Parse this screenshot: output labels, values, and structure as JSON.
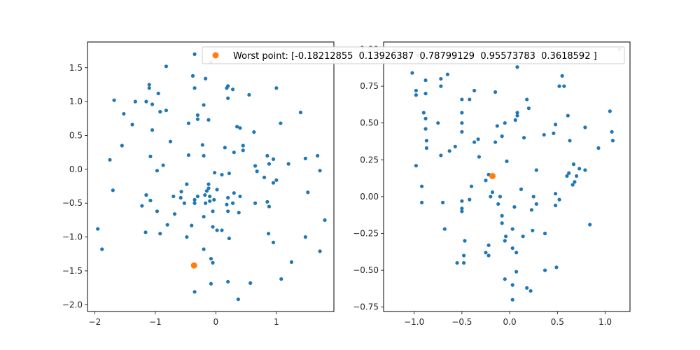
{
  "colors": {
    "series_points": "#1f77b4",
    "worst_point": "#ff7f0e",
    "axes": "#000000",
    "background": "#ffffff"
  },
  "legend": {
    "label": "Worst point: [-0.18212855  0.13926387  0.78799129  0.95573783  0.3618592 ]",
    "placement": "top-right of left plot, overlapping right plot"
  },
  "chart_data": [
    {
      "type": "scatter",
      "title": "",
      "xlabel": "",
      "ylabel": "",
      "grid": false,
      "xlim": [
        -2.12,
        1.95
      ],
      "ylim": [
        -2.1,
        1.88
      ],
      "xticks": [
        -2,
        -1,
        0,
        1
      ],
      "xtick_labels": [
        "−2",
        "−1",
        "0",
        "1"
      ],
      "yticks": [
        -2.0,
        -1.5,
        -1.0,
        -0.5,
        0.0,
        0.5,
        1.0,
        1.5
      ],
      "ytick_labels": [
        "−2.0",
        "−1.5",
        "−1.0",
        "−0.5",
        "0.0",
        "0.5",
        "1.0",
        "1.5"
      ],
      "series": [
        {
          "points": [
            [
              -0.35,
              1.7
            ],
            [
              -0.08,
              1.58
            ],
            [
              -0.82,
              1.52
            ],
            [
              -0.38,
              1.38
            ],
            [
              -0.17,
              1.34
            ],
            [
              -1.1,
              1.25
            ],
            [
              -0.35,
              1.2
            ],
            [
              0.18,
              1.2
            ],
            [
              0.2,
              1.23
            ],
            [
              0.28,
              1.18
            ],
            [
              -1.1,
              1.2
            ],
            [
              -0.95,
              1.12
            ],
            [
              0.55,
              1.1
            ],
            [
              1.0,
              1.2
            ],
            [
              -1.68,
              1.02
            ],
            [
              -1.33,
              1.0
            ],
            [
              -1.15,
              1.0
            ],
            [
              -1.05,
              0.96
            ],
            [
              -0.2,
              0.95
            ],
            [
              0.2,
              1.05
            ],
            [
              -0.82,
              0.87
            ],
            [
              -0.92,
              0.85
            ],
            [
              -1.52,
              0.82
            ],
            [
              -0.3,
              0.8
            ],
            [
              -0.3,
              0.74
            ],
            [
              -0.12,
              0.73
            ],
            [
              1.4,
              0.84
            ],
            [
              1.07,
              0.68
            ],
            [
              -0.45,
              0.68
            ],
            [
              -1.38,
              0.66
            ],
            [
              0.35,
              0.63
            ],
            [
              0.4,
              0.61
            ],
            [
              0.63,
              0.55
            ],
            [
              -1.05,
              0.58
            ],
            [
              -0.75,
              0.41
            ],
            [
              -1.55,
              0.35
            ],
            [
              -0.22,
              0.36
            ],
            [
              0.15,
              0.32
            ],
            [
              0.45,
              0.35
            ],
            [
              0.45,
              0.28
            ],
            [
              0.3,
              0.25
            ],
            [
              -0.45,
              0.21
            ],
            [
              -1.08,
              0.19
            ],
            [
              -0.2,
              0.2
            ],
            [
              0.85,
              0.2
            ],
            [
              0.95,
              0.15
            ],
            [
              1.48,
              0.16
            ],
            [
              1.68,
              0.2
            ],
            [
              1.2,
              0.08
            ],
            [
              0.88,
              0.08
            ],
            [
              -1.75,
              0.14
            ],
            [
              -0.87,
              0.06
            ],
            [
              0.65,
              0.05
            ],
            [
              -0.97,
              -0.02
            ],
            [
              0.1,
              -0.08
            ],
            [
              0.22,
              -0.06
            ],
            [
              0.68,
              -0.03
            ],
            [
              1.72,
              -0.02
            ],
            [
              -0.02,
              -0.05
            ],
            [
              0.8,
              -0.12
            ],
            [
              1.0,
              -0.16
            ],
            [
              0.95,
              -0.2
            ],
            [
              -0.12,
              -0.22
            ],
            [
              -0.48,
              -0.22
            ],
            [
              -0.12,
              -0.28
            ],
            [
              -0.15,
              -0.32
            ],
            [
              -0.57,
              -0.33
            ],
            [
              0.02,
              -0.3
            ],
            [
              1.52,
              -0.34
            ],
            [
              -0.7,
              -0.4
            ],
            [
              -0.58,
              -0.42
            ],
            [
              -0.35,
              -0.45
            ],
            [
              -0.3,
              -0.4
            ],
            [
              -0.18,
              -0.38
            ],
            [
              -0.1,
              -0.4
            ],
            [
              0.3,
              -0.35
            ],
            [
              0.4,
              -0.4
            ],
            [
              0.2,
              -0.42
            ],
            [
              -0.03,
              -0.45
            ],
            [
              -1.15,
              -0.38
            ],
            [
              -1.7,
              -0.31
            ],
            [
              -1.08,
              -0.46
            ],
            [
              -0.52,
              -0.5
            ],
            [
              -0.35,
              -0.5
            ],
            [
              -0.17,
              -0.5
            ],
            [
              -0.1,
              -0.47
            ],
            [
              0.28,
              -0.5
            ],
            [
              0.18,
              -0.52
            ],
            [
              0.85,
              -0.48
            ],
            [
              0.88,
              -0.55
            ],
            [
              -1.22,
              -0.54
            ],
            [
              -0.97,
              -0.62
            ],
            [
              -0.05,
              -0.62
            ],
            [
              0.2,
              -0.62
            ],
            [
              0.65,
              -0.5
            ],
            [
              0.38,
              -0.64
            ],
            [
              -0.68,
              -0.66
            ],
            [
              -0.2,
              -0.7
            ],
            [
              -0.8,
              -0.82
            ],
            [
              -0.4,
              -0.83
            ],
            [
              -0.05,
              -0.85
            ],
            [
              0.1,
              -0.9
            ],
            [
              0.02,
              -0.9
            ],
            [
              -0.92,
              -0.95
            ],
            [
              -1.16,
              -0.93
            ],
            [
              -1.95,
              -0.88
            ],
            [
              0.22,
              -1.02
            ],
            [
              -0.48,
              -1.0
            ],
            [
              0.87,
              -0.95
            ],
            [
              1.48,
              -1.0
            ],
            [
              1.8,
              -0.75
            ],
            [
              0.95,
              -1.08
            ],
            [
              -1.88,
              -1.18
            ],
            [
              -0.2,
              -1.18
            ],
            [
              -0.08,
              -1.32
            ],
            [
              -0.05,
              -1.38
            ],
            [
              1.25,
              -1.37
            ],
            [
              1.72,
              -1.21
            ],
            [
              1.08,
              -1.62
            ],
            [
              0.2,
              -1.66
            ],
            [
              0.57,
              -1.68
            ],
            [
              -0.08,
              -1.69
            ],
            [
              -0.35,
              -1.81
            ],
            [
              0.37,
              -1.92
            ]
          ]
        },
        {
          "name": "Worst point: [-0.18212855  0.13926387  0.78799129  0.95573783  0.3618592 ]",
          "points": [
            [
              -0.36,
              -1.42
            ]
          ]
        }
      ]
    },
    {
      "type": "scatter",
      "title": "",
      "xlabel": "",
      "ylabel": "",
      "grid": false,
      "xlim": [
        -1.32,
        1.26
      ],
      "ylim": [
        -0.78,
        1.05
      ],
      "xticks": [
        -1.0,
        -0.5,
        0.0,
        0.5,
        1.0
      ],
      "xtick_labels": [
        "−1.0",
        "−0.5",
        "0.0",
        "0.5",
        "1.0"
      ],
      "yticks": [
        -0.75,
        -0.5,
        -0.25,
        0.0,
        0.25,
        0.5,
        0.75,
        1.0
      ],
      "ytick_labels": [
        "−0.75",
        "−0.50",
        "−0.25",
        "0.00",
        "0.25",
        "0.50",
        "0.75",
        "1.00"
      ],
      "series": [
        {
          "points": [
            [
              -1.2,
              0.99
            ],
            [
              -0.96,
              0.96
            ],
            [
              -0.92,
              0.93
            ],
            [
              -1.02,
              0.84
            ],
            [
              -0.88,
              0.79
            ],
            [
              -0.65,
              0.83
            ],
            [
              -0.72,
              0.8
            ],
            [
              -0.98,
              0.72
            ],
            [
              -0.98,
              0.69
            ],
            [
              -0.88,
              0.7
            ],
            [
              -0.72,
              0.75
            ],
            [
              0.08,
              0.88
            ],
            [
              0.55,
              0.82
            ],
            [
              0.52,
              0.75
            ],
            [
              0.57,
              0.75
            ],
            [
              -0.37,
              0.72
            ],
            [
              -0.5,
              0.66
            ],
            [
              -0.42,
              0.66
            ],
            [
              -0.15,
              0.71
            ],
            [
              0.18,
              0.66
            ],
            [
              -0.9,
              0.57
            ],
            [
              -0.88,
              0.53
            ],
            [
              -0.75,
              0.5
            ],
            [
              -0.5,
              0.57
            ],
            [
              -0.5,
              0.5
            ],
            [
              0.2,
              0.6
            ],
            [
              0.08,
              0.57
            ],
            [
              0.08,
              0.55
            ],
            [
              0.06,
              0.52
            ],
            [
              -0.05,
              0.5
            ],
            [
              -0.13,
              0.48
            ],
            [
              0.61,
              0.55
            ],
            [
              -0.88,
              0.46
            ],
            [
              -0.5,
              0.44
            ],
            [
              -0.87,
              0.38
            ],
            [
              -0.37,
              0.37
            ],
            [
              -0.33,
              0.39
            ],
            [
              -0.08,
              0.41
            ],
            [
              0.46,
              0.43
            ],
            [
              0.48,
              0.49
            ],
            [
              0.36,
              0.42
            ],
            [
              0.15,
              0.4
            ],
            [
              0.79,
              0.47
            ],
            [
              -0.57,
              0.34
            ],
            [
              -0.87,
              0.33
            ],
            [
              -0.63,
              0.31
            ],
            [
              -0.15,
              0.37
            ],
            [
              0.63,
              0.38
            ],
            [
              1.07,
              0.44
            ],
            [
              1.08,
              0.38
            ],
            [
              0.93,
              0.33
            ],
            [
              1.05,
              0.58
            ],
            [
              -0.72,
              0.28
            ],
            [
              -0.32,
              0.27
            ],
            [
              -0.03,
              0.24
            ],
            [
              0.67,
              0.22
            ],
            [
              0.73,
              0.19
            ],
            [
              0.79,
              0.18
            ],
            [
              0.62,
              0.16
            ],
            [
              -0.98,
              0.21
            ],
            [
              0.28,
              0.18
            ],
            [
              0.6,
              0.14
            ],
            [
              0.68,
              0.1
            ],
            [
              0.7,
              0.14
            ],
            [
              0.66,
              0.08
            ],
            [
              -0.22,
              0.15
            ],
            [
              -0.25,
              0.11
            ],
            [
              -0.4,
              0.07
            ],
            [
              0.12,
              0.05
            ],
            [
              -0.92,
              0.07
            ],
            [
              -0.18,
              0.03
            ],
            [
              0.48,
              0.02
            ],
            [
              -0.1,
              0.0
            ],
            [
              0.52,
              -0.02
            ],
            [
              -0.2,
              0.0
            ],
            [
              0.25,
              0.0
            ],
            [
              -0.5,
              -0.03
            ],
            [
              -0.42,
              -0.02
            ],
            [
              -0.7,
              -0.04
            ],
            [
              0.28,
              -0.05
            ],
            [
              -0.92,
              -0.04
            ],
            [
              0.05,
              -0.07
            ],
            [
              -0.12,
              -0.05
            ],
            [
              0.23,
              -0.09
            ],
            [
              -0.5,
              -0.08
            ],
            [
              -0.5,
              -0.1
            ],
            [
              0.48,
              -0.06
            ],
            [
              -0.08,
              -0.13
            ],
            [
              -0.08,
              -0.18
            ],
            [
              0.03,
              -0.22
            ],
            [
              -0.68,
              -0.22
            ],
            [
              0.24,
              -0.23
            ],
            [
              0.37,
              -0.25
            ],
            [
              0.84,
              -0.19
            ],
            [
              -0.04,
              -0.27
            ],
            [
              0.14,
              -0.27
            ],
            [
              -0.47,
              -0.3
            ],
            [
              -0.05,
              -0.3
            ],
            [
              -0.22,
              -0.33
            ],
            [
              0.03,
              -0.35
            ],
            [
              -0.25,
              -0.38
            ],
            [
              -0.22,
              -0.4
            ],
            [
              -0.48,
              -0.4
            ],
            [
              -0.55,
              -0.45
            ],
            [
              -0.48,
              -0.45
            ],
            [
              0.07,
              -0.38
            ],
            [
              0.37,
              -0.5
            ],
            [
              0.49,
              -0.48
            ],
            [
              0.07,
              -0.51
            ],
            [
              -0.05,
              -0.56
            ],
            [
              0.03,
              -0.6
            ],
            [
              0.18,
              -0.62
            ],
            [
              0.22,
              -0.64
            ],
            [
              0.03,
              -0.7
            ],
            [
              1.15,
              1.0
            ]
          ]
        },
        {
          "name": "Worst point: [-0.18212855  0.13926387  0.78799129  0.95573783  0.3618592 ]",
          "points": [
            [
              -0.18,
              0.14
            ]
          ]
        }
      ]
    }
  ]
}
